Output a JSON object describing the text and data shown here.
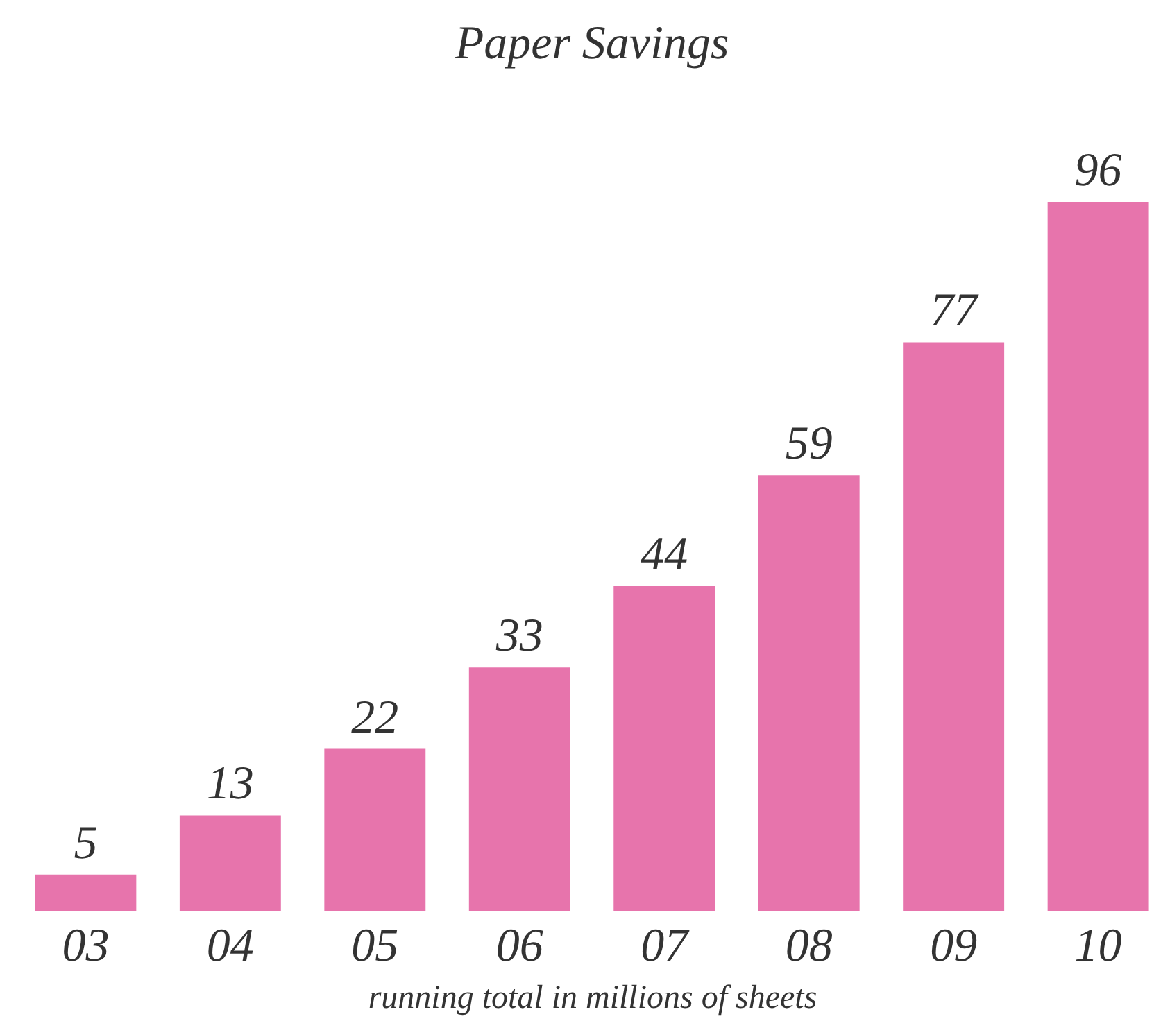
{
  "chart_data": {
    "type": "bar",
    "title": "Paper Savings",
    "xlabel": "running total in millions of sheets",
    "categories": [
      "03",
      "04",
      "05",
      "06",
      "07",
      "08",
      "09",
      "10"
    ],
    "values": [
      5,
      13,
      22,
      33,
      44,
      59,
      77,
      96
    ],
    "color": "#e774ac",
    "data_labels": true
  }
}
